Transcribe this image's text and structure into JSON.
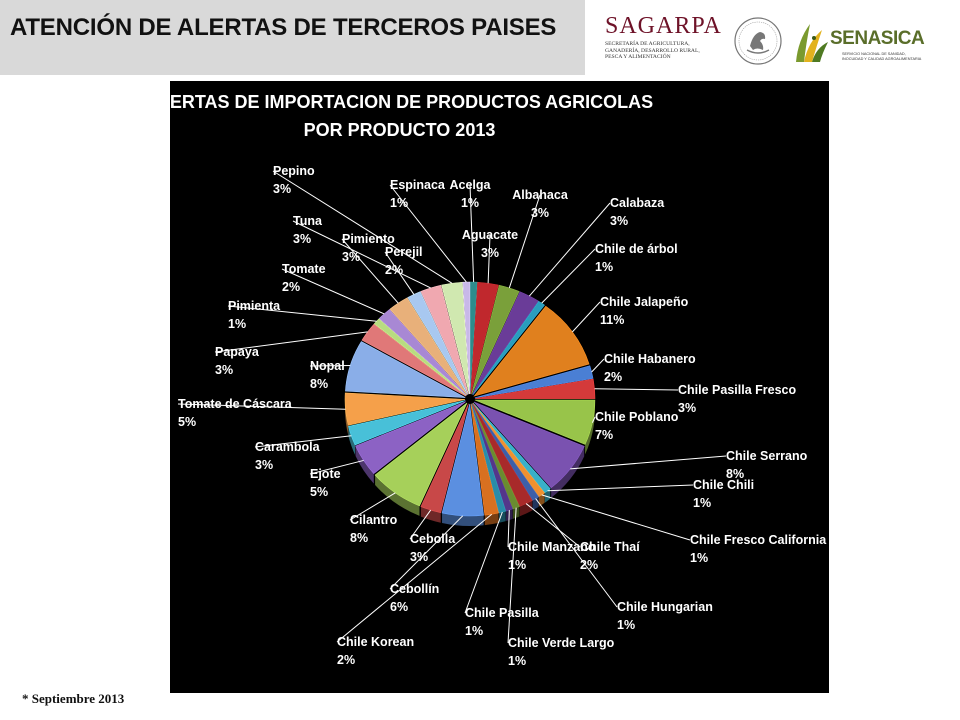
{
  "slide": {
    "title": "ATENCIÓN DE ALERTAS DE TERCEROS PAISES",
    "footnote": "* Septiembre 2013"
  },
  "logos": {
    "sagarpa_name": "SAGARPA",
    "sagarpa_subtitle_lines": [
      "SECRETARÍA DE AGRICULTURA,",
      "GANADERÍA, DESARROLLO RURAL,",
      "PESCA Y ALIMENTACIÓN"
    ],
    "senasica_name": "SENASICA",
    "senasica_subtitle_lines": [
      "SERVICIO NACIONAL DE SANIDAD,",
      "INOCUIDAD Y CALIDAD AGROALIMENTARIA"
    ],
    "seal_icon": "mexico-coat-of-arms-icon"
  },
  "colors": {
    "title_band": "#d9d9d9",
    "chart_background": "#000000",
    "sagarpa": "#6e1228",
    "senasica": "#5a6e2a"
  },
  "chart_data": {
    "type": "pie",
    "style": "3d-exploded",
    "title": [
      "ALERTAS DE IMPORTACION DE PRODUCTOS AGRICOLAS",
      "POR PRODUCTO 2013"
    ],
    "legend": "none",
    "slices": [
      {
        "name": "Acelga",
        "value": 1,
        "label": "1%",
        "color": "#2e8c8c"
      },
      {
        "name": "Aguacate",
        "value": 3,
        "label": "3%",
        "color": "#c0282d"
      },
      {
        "name": "Albahaca",
        "value": 3,
        "label": "3%",
        "color": "#7aa03a"
      },
      {
        "name": "Calabaza",
        "value": 3,
        "label": "3%",
        "color": "#6a3c98"
      },
      {
        "name": "Chile de árbol",
        "value": 1,
        "label": "1%",
        "color": "#2a9dbd"
      },
      {
        "name": "Chile Jalapeño",
        "value": 11,
        "label": "11%",
        "color": "#e0801e"
      },
      {
        "name": "Chile Habanero",
        "value": 2,
        "label": "2%",
        "color": "#4a7fd4"
      },
      {
        "name": "Chile Pasilla Fresco",
        "value": 3,
        "label": "3%",
        "color": "#d43a3a"
      },
      {
        "name": "Chile Poblano",
        "value": 7,
        "label": "7%",
        "color": "#98c44a"
      },
      {
        "name": "Chile Serrano",
        "value": 8,
        "label": "8%",
        "color": "#7a52b0"
      },
      {
        "name": "Chile Chili",
        "value": 1,
        "label": "1%",
        "color": "#3ab0c8"
      },
      {
        "name": "Chile Fresco California",
        "value": 1,
        "label": "1%",
        "color": "#f09030"
      },
      {
        "name": "Chile Hungarian",
        "value": 1,
        "label": "1%",
        "color": "#3d5fa8"
      },
      {
        "name": "Chile Thaí",
        "value": 2,
        "label": "2%",
        "color": "#a82a2a"
      },
      {
        "name": "Chile Verde Largo",
        "value": 1,
        "label": "1%",
        "color": "#6a8c30"
      },
      {
        "name": "Chile Manzano",
        "value": 1,
        "label": "1%",
        "color": "#54368a"
      },
      {
        "name": "Chile Pasilla",
        "value": 1,
        "label": "1%",
        "color": "#2a8ca8"
      },
      {
        "name": "Chile Korean",
        "value": 2,
        "label": "2%",
        "color": "#d87020"
      },
      {
        "name": "Cebollín",
        "value": 6,
        "label": "6%",
        "color": "#5b8fe0"
      },
      {
        "name": "Cebolla",
        "value": 3,
        "label": "3%",
        "color": "#c84848"
      },
      {
        "name": "Cilantro",
        "value": 8,
        "label": "8%",
        "color": "#a6d05a"
      },
      {
        "name": "Ejote",
        "value": 5,
        "label": "5%",
        "color": "#8c62c4"
      },
      {
        "name": "Carambola",
        "value": 3,
        "label": "3%",
        "color": "#48c0d8"
      },
      {
        "name": "Tomate de Cáscara",
        "value": 5,
        "label": "5%",
        "color": "#f5a04a"
      },
      {
        "name": "Nopal",
        "value": 8,
        "label": "8%",
        "color": "#8aaee8"
      },
      {
        "name": "Papaya",
        "value": 3,
        "label": "3%",
        "color": "#e07878"
      },
      {
        "name": "Pimienta",
        "value": 1,
        "label": "1%",
        "color": "#b8dc80"
      },
      {
        "name": "Tomate",
        "value": 2,
        "label": "2%",
        "color": "#a888d4"
      },
      {
        "name": "Pimiento",
        "value": 3,
        "label": "3%",
        "color": "#e8b07a"
      },
      {
        "name": "Perejil",
        "value": 2,
        "label": "2%",
        "color": "#a8c8f0"
      },
      {
        "name": "Tuna",
        "value": 3,
        "label": "3%",
        "color": "#f0a8b0"
      },
      {
        "name": "Pepino",
        "value": 3,
        "label": "3%",
        "color": "#d0e8b0"
      },
      {
        "name": "Espinaca",
        "value": 1,
        "label": "1%",
        "color": "#c8b8e8"
      }
    ]
  }
}
